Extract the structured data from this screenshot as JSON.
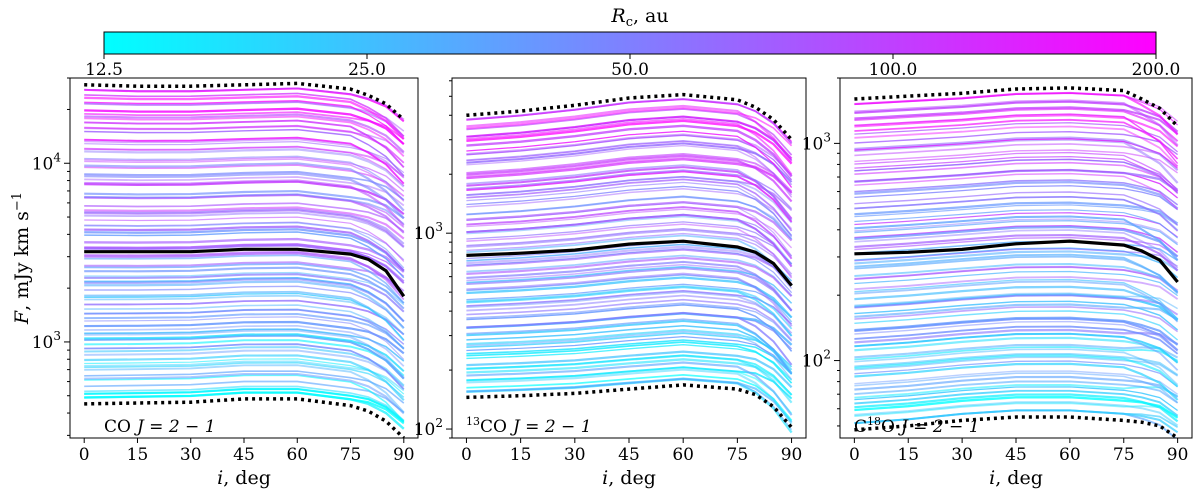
{
  "colorbar": {
    "label_var": "R",
    "label_sub": "c",
    "label_unit": ", au",
    "ticks": [
      "12.5",
      "25.0",
      "50.0",
      "100.0",
      "200.0"
    ],
    "ticks_values": [
      12.5,
      25.0,
      50.0,
      100.0,
      200.0
    ],
    "range": [
      12.5,
      200.0
    ],
    "color_low": "#00ffff",
    "color_high": "#ff00ff"
  },
  "ylabel": {
    "var": "F",
    "unit": ", mJy km s",
    "sup": "−1"
  },
  "chart_data": [
    {
      "type": "line",
      "panel_label": {
        "pre_sup": "",
        "species": "CO",
        "transition": "J = 2 − 1"
      },
      "xlabel": "i, deg",
      "x": [
        0,
        15,
        30,
        45,
        60,
        75,
        80,
        85,
        90
      ],
      "xticks": [
        "0",
        "15",
        "30",
        "45",
        "60",
        "75",
        "90"
      ],
      "xlim": [
        -4,
        94
      ],
      "yscale": "log",
      "ylim": [
        290,
        30000
      ],
      "yticks": [
        {
          "base": "10",
          "exp": "3",
          "value": 1000
        },
        {
          "base": "10",
          "exp": "4",
          "value": 10000
        }
      ],
      "upper_envelope": [
        27500,
        27000,
        27000,
        27500,
        28000,
        26000,
        24000,
        21500,
        17500
      ],
      "median": [
        3200,
        3200,
        3200,
        3300,
        3300,
        3100,
        2900,
        2500,
        1800
      ],
      "lower_envelope": [
        450,
        455,
        460,
        480,
        480,
        440,
        410,
        360,
        290
      ],
      "models_note": "about 100 model curves spanning the envelopes, colored by R_c"
    },
    {
      "type": "line",
      "panel_label": {
        "pre_sup": "13",
        "species": "CO",
        "transition": "J = 2 − 1"
      },
      "xlabel": "i, deg",
      "x": [
        0,
        15,
        30,
        45,
        60,
        75,
        80,
        85,
        90
      ],
      "xticks": [
        "0",
        "15",
        "30",
        "45",
        "60",
        "75",
        "90"
      ],
      "xlim": [
        -4,
        94
      ],
      "yscale": "log",
      "ylim": [
        90,
        6200
      ],
      "yticks": [
        {
          "base": "10",
          "exp": "2",
          "value": 100
        },
        {
          "base": "10",
          "exp": "3",
          "value": 1000
        }
      ],
      "upper_envelope": [
        4000,
        4200,
        4500,
        4900,
        5100,
        4800,
        4400,
        3800,
        3000
      ],
      "median": [
        770,
        790,
        820,
        880,
        910,
        850,
        800,
        700,
        540
      ],
      "lower_envelope": [
        145,
        148,
        152,
        160,
        168,
        160,
        150,
        130,
        102
      ],
      "models_note": "about 100 model curves spanning the envelopes, colored by R_c"
    },
    {
      "type": "line",
      "panel_label": {
        "pre_sup": "",
        "species": "C",
        "species_sup": "18",
        "species_tail": "O",
        "transition": "J = 2 − 1"
      },
      "xlabel": "i, deg",
      "x": [
        0,
        15,
        30,
        45,
        60,
        75,
        80,
        85,
        90
      ],
      "xticks": [
        "0",
        "15",
        "30",
        "45",
        "60",
        "75",
        "90"
      ],
      "xlim": [
        -4,
        94
      ],
      "yscale": "log",
      "ylim": [
        44,
        2000
      ],
      "yticks": [
        {
          "base": "10",
          "exp": "2",
          "value": 100
        },
        {
          "base": "10",
          "exp": "3",
          "value": 1000
        }
      ],
      "upper_envelope": [
        1600,
        1650,
        1700,
        1780,
        1800,
        1750,
        1600,
        1450,
        1200
      ],
      "median": [
        310,
        315,
        325,
        345,
        355,
        340,
        320,
        290,
        230
      ],
      "lower_envelope": [
        48,
        50,
        53,
        55,
        55,
        53,
        52,
        50,
        44
      ],
      "models_note": "about 100 model curves spanning the envelopes, colored by R_c"
    }
  ]
}
